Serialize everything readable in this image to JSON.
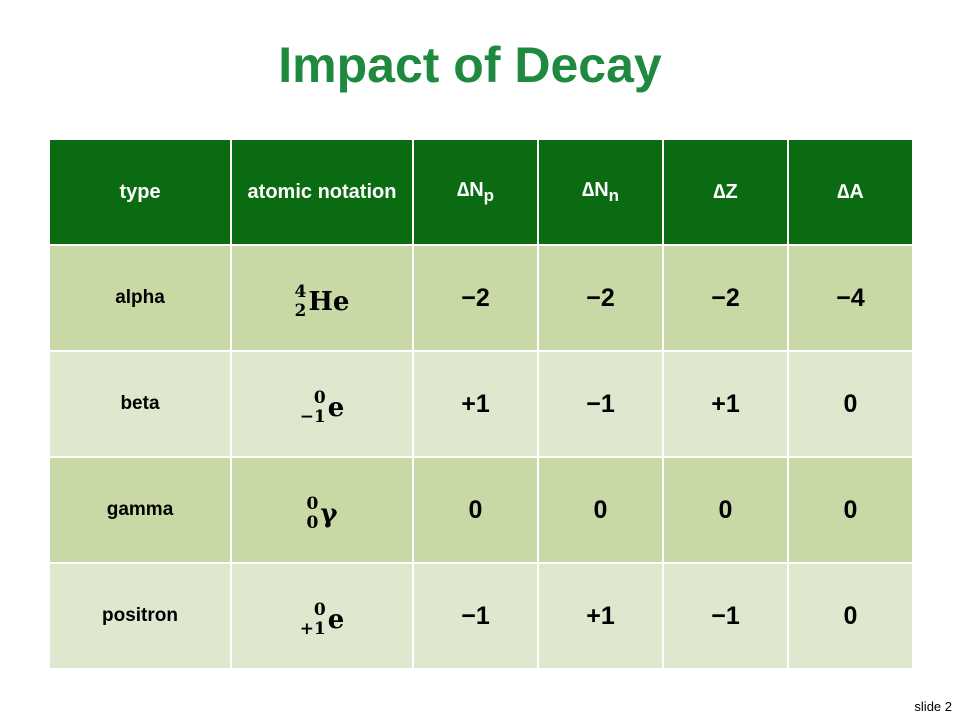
{
  "title": "Impact of Decay",
  "table": {
    "header": [
      "type",
      "atomic notation",
      {
        "symbol": "∆N",
        "subscript": "p"
      },
      {
        "symbol": "∆N",
        "subscript": "n"
      },
      "∆Z",
      "∆A"
    ],
    "rows": [
      [
        "alpha",
        {
          "top": "4",
          "bottom": "2",
          "symbol": "He"
        },
        "−2",
        "−2",
        "−2",
        "−4"
      ],
      [
        "beta",
        {
          "top": "0",
          "bottom": "−1",
          "symbol": "e"
        },
        "+1",
        "−1",
        "+1",
        "0"
      ],
      [
        "gamma",
        {
          "top": "0",
          "bottom": "0",
          "symbol": "γ"
        },
        "0",
        "0",
        "0",
        "0"
      ],
      [
        "positron",
        {
          "top": "0",
          "bottom": "+1",
          "symbol": "e"
        },
        "−1",
        "+1",
        "−1",
        "0"
      ]
    ]
  },
  "footer": "slide 2"
}
